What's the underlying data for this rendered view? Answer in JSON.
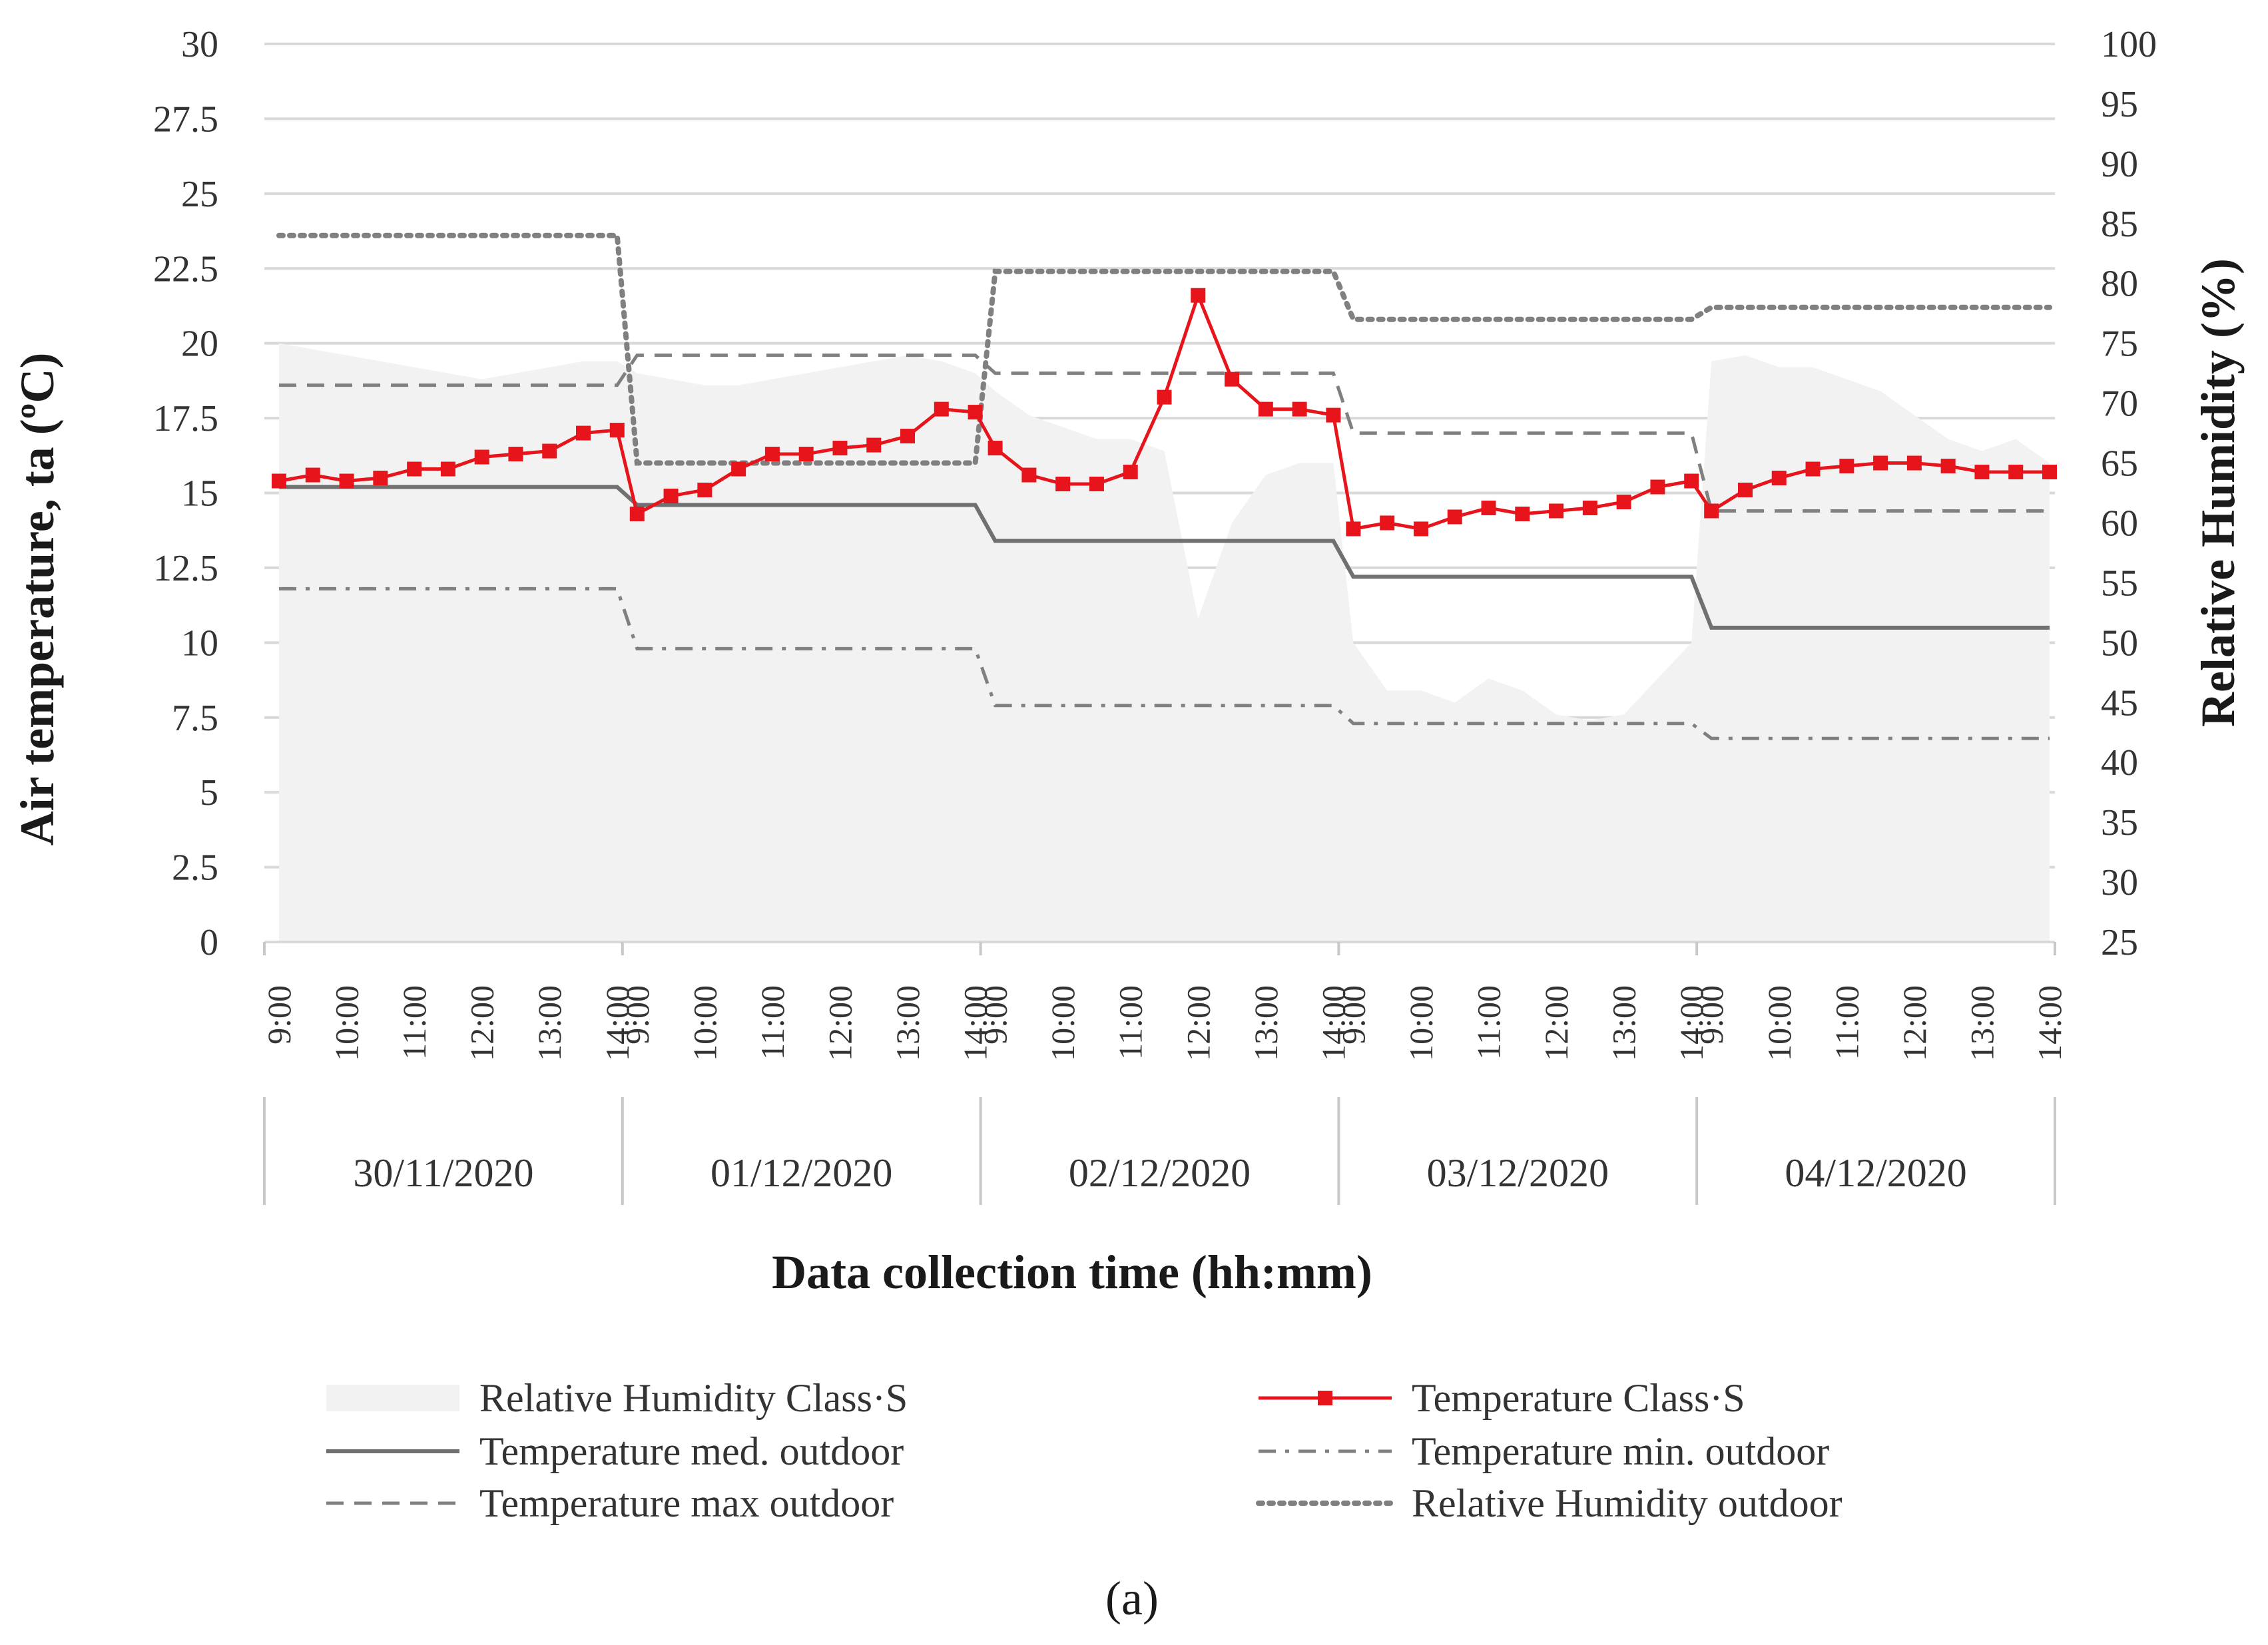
{
  "chart_data": {
    "type": "line",
    "caption": "(a)",
    "xlabel": "Data collection time (hh:mm)",
    "ylabel": "Air temperature, ta (ºC)",
    "y2label": "Relative Humidity (%)",
    "ylim": [
      0,
      30
    ],
    "y2lim": [
      25,
      100
    ],
    "y_ticks": [
      "0",
      "2.5",
      "5",
      "7.5",
      "10",
      "12.5",
      "15",
      "17.5",
      "20",
      "22.5",
      "25",
      "27.5",
      "30"
    ],
    "y2_ticks": [
      "25",
      "30",
      "35",
      "40",
      "45",
      "50",
      "55",
      "60",
      "65",
      "70",
      "75",
      "80",
      "85",
      "90",
      "95",
      "100"
    ],
    "grid": true,
    "days": [
      "30/11/2020",
      "01/12/2020",
      "02/12/2020",
      "03/12/2020",
      "04/12/2020"
    ],
    "time_labels": [
      "9:00",
      "10:00",
      "11:00",
      "12:00",
      "13:00",
      "14:00"
    ],
    "points_per_day": 11,
    "series": [
      {
        "name": "Relative Humidity Class·S",
        "axis": "right",
        "style": "area",
        "color": "#f2f2f2",
        "values": [
          75,
          74.5,
          74,
          73.5,
          73,
          72.5,
          72,
          72.5,
          73,
          73.5,
          73.5,
          72.5,
          72,
          71.5,
          71.5,
          72,
          72.5,
          73,
          73.5,
          74,
          73.5,
          72.5,
          71,
          69,
          68,
          67,
          67,
          66,
          52,
          60,
          64,
          65,
          65,
          50,
          46,
          46,
          45,
          47,
          46,
          44,
          43.5,
          44,
          47,
          50,
          73.5,
          74,
          73,
          73,
          72,
          71,
          69,
          67,
          66,
          67,
          65
        ]
      },
      {
        "name": "Temperature Class·S",
        "axis": "left",
        "style": "line-marker",
        "color": "#e8141c",
        "values": [
          15.4,
          15.6,
          15.4,
          15.5,
          15.8,
          15.8,
          16.2,
          16.3,
          16.4,
          17.0,
          17.1,
          14.3,
          14.9,
          15.1,
          15.8,
          16.3,
          16.3,
          16.5,
          16.6,
          16.9,
          17.8,
          17.7,
          16.5,
          15.6,
          15.3,
          15.3,
          15.7,
          18.2,
          21.6,
          18.8,
          17.8,
          17.8,
          17.6,
          13.8,
          14.0,
          13.8,
          14.2,
          14.5,
          14.3,
          14.4,
          14.5,
          14.7,
          15.2,
          15.4,
          14.4,
          15.1,
          15.5,
          15.8,
          15.9,
          16.0,
          16.0,
          15.9,
          15.7,
          15.7,
          15.7
        ]
      },
      {
        "name": "Temperature med. outdoor",
        "axis": "left",
        "style": "solid",
        "color": "#707070",
        "values": [
          15.2,
          14.6,
          13.4,
          12.2,
          10.5
        ]
      },
      {
        "name": "Temperature min. outdoor",
        "axis": "left",
        "style": "dash-dot",
        "color": "#808080",
        "values": [
          11.8,
          9.8,
          7.9,
          7.3,
          6.8
        ]
      },
      {
        "name": "Temperature max outdoor",
        "axis": "left",
        "style": "dashed",
        "color": "#808080",
        "values": [
          18.6,
          19.6,
          19.0,
          17.0,
          14.4
        ]
      },
      {
        "name": "Relative Humidity outdoor",
        "axis": "right",
        "style": "dotted",
        "color": "#808080",
        "values": [
          84,
          65,
          81,
          77,
          78
        ]
      }
    ],
    "legend": {
      "placement": "bottom",
      "entries": [
        "Relative Humidity Class·S",
        "Temperature Class·S",
        "Temperature med. outdoor",
        "Temperature min. outdoor",
        "Temperature max outdoor",
        "Relative Humidity outdoor"
      ]
    }
  }
}
